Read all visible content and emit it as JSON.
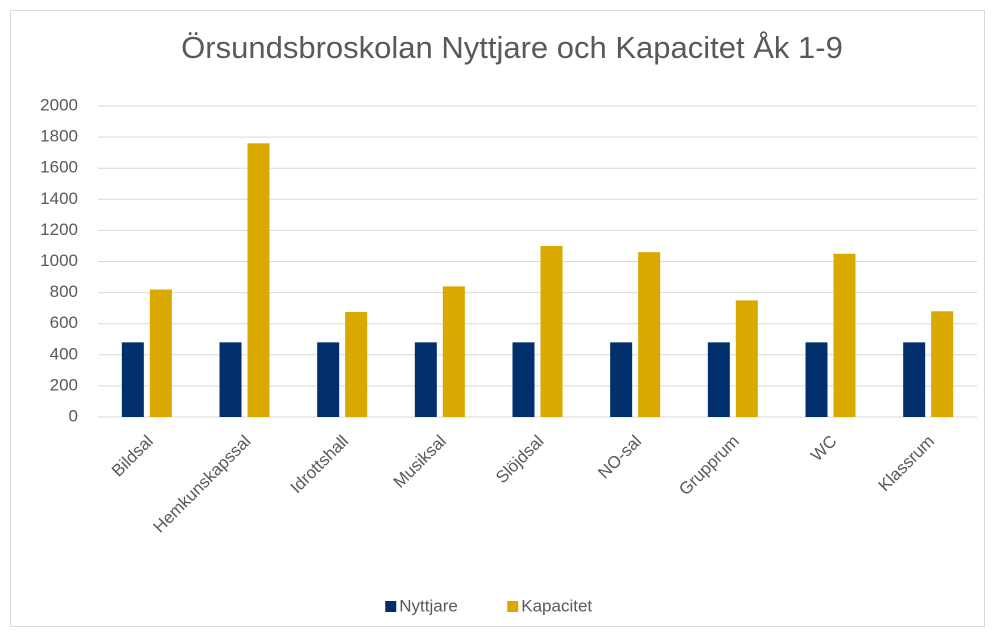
{
  "chart_data": {
    "type": "bar",
    "title": "Örsundsbroskolan Nyttjare och Kapacitet Åk 1-9",
    "categories": [
      "Bildsal",
      "Hemkunskapssal",
      "Idrottshall",
      "Musiksal",
      "Slöjdsal",
      "NO-sal",
      "Grupprum",
      "WC",
      "Klassrum"
    ],
    "series": [
      {
        "name": "Nyttjare",
        "color": "#002f6c",
        "values": [
          480,
          480,
          480,
          480,
          480,
          480,
          480,
          480,
          480
        ]
      },
      {
        "name": "Kapacitet",
        "color": "#d9a900",
        "values": [
          820,
          1760,
          675,
          840,
          1100,
          1060,
          750,
          1050,
          680
        ]
      }
    ],
    "ylim": [
      0,
      2000
    ],
    "yticks": [
      0,
      200,
      400,
      600,
      800,
      1000,
      1200,
      1400,
      1600,
      1800,
      2000
    ],
    "grid": true,
    "legend": "bottom"
  }
}
